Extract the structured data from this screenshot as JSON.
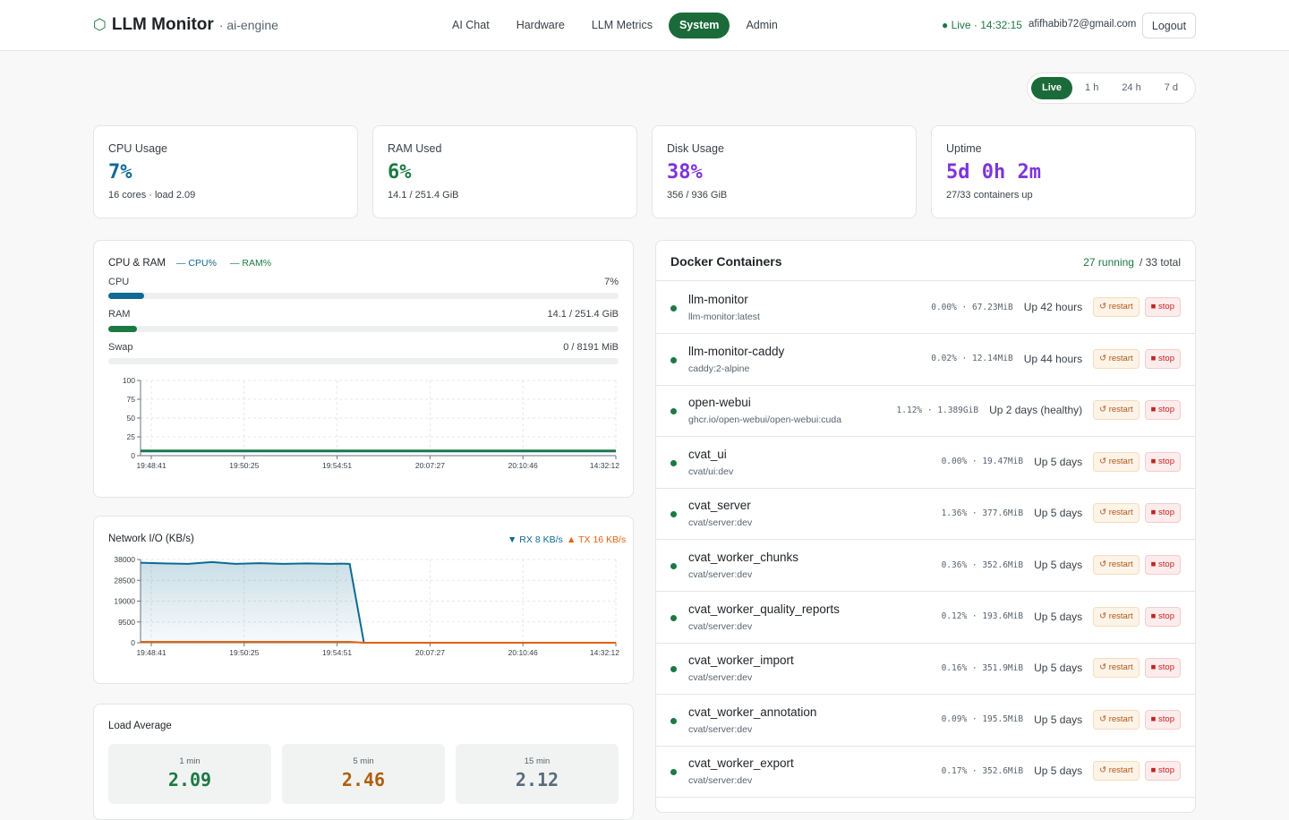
{
  "header": {
    "brand_icon": "hexagon-icon",
    "brand_symbol": "⬡",
    "title": "LLM Monitor",
    "subtitle": "· ai-engine",
    "nav": [
      {
        "label": "AI Chat",
        "active": false
      },
      {
        "label": "Hardware",
        "active": false
      },
      {
        "label": "LLM Metrics",
        "active": false
      },
      {
        "label": "System",
        "active": true
      },
      {
        "label": "Admin",
        "active": false
      }
    ],
    "status": "● Live · 14:32:15",
    "email": "afifhabib72@gmail.com",
    "logout_label": "Logout"
  },
  "range": {
    "options": [
      "Live",
      "1 h",
      "24 h",
      "7 d"
    ],
    "selected": "Live"
  },
  "colors": {
    "accent": "#1b6b3a",
    "cpu": "#0e6a94",
    "ram": "#1b7a43",
    "disk": "#7c35d9",
    "rx": "#0e6a94",
    "tx": "#e0620f",
    "load5": "#b05e0f",
    "load15": "#5a6b7c"
  },
  "stats": {
    "cpu": {
      "label": "CPU Usage",
      "value": "7%",
      "sub": "16 cores · load 2.09"
    },
    "ram": {
      "label": "RAM Used",
      "value": "6%",
      "sub": "14.1 / 251.4 GiB"
    },
    "disk": {
      "label": "Disk Usage",
      "value": "38%",
      "sub": "356 / 936 GiB"
    },
    "uptime": {
      "label": "Uptime",
      "value": "5d 0h 2m",
      "sub": "27/33 containers up"
    }
  },
  "cpu_ram": {
    "title": "CPU & RAM",
    "legend_cpu": "— CPU%",
    "legend_ram": "— RAM%",
    "bars": {
      "cpu": {
        "label": "CPU",
        "value": "7%",
        "percent": 7
      },
      "ram": {
        "label": "RAM",
        "value": "14.1 / 251.4 GiB",
        "percent": 5.6
      },
      "swap": {
        "label": "Swap",
        "value": "0 / 8191 MiB",
        "percent": 0
      }
    }
  },
  "network": {
    "title": "Network I/O (KB/s)",
    "legend_rx": "▼ RX 8 KB/s",
    "legend_tx": "▲ TX 16 KB/s"
  },
  "chart_data": [
    {
      "type": "line",
      "title": "CPU & RAM",
      "x": [
        "19:48:41",
        "19:50:25",
        "19:54:51",
        "20:07:27",
        "20:10:46",
        "14:32:12"
      ],
      "yticks": [
        0,
        25,
        50,
        75,
        100
      ],
      "ylim": [
        0,
        100
      ],
      "series": [
        {
          "name": "CPU%",
          "values": [
            6,
            6,
            6,
            6,
            6,
            6
          ]
        },
        {
          "name": "RAM%",
          "values": [
            6,
            6,
            6,
            6,
            6,
            6
          ]
        }
      ],
      "grid": true
    },
    {
      "type": "area",
      "title": "Network I/O (KB/s)",
      "x": [
        "19:48:41",
        "19:50:25",
        "19:54:51",
        "20:07:27",
        "20:10:46",
        "14:32:12"
      ],
      "yticks": [
        0,
        9500,
        19000,
        28500,
        38000
      ],
      "ylim": [
        0,
        38000
      ],
      "series": [
        {
          "name": "RX",
          "points": [
            [
              0,
              36500
            ],
            [
              0.05,
              36200
            ],
            [
              0.1,
              36000
            ],
            [
              0.15,
              36800
            ],
            [
              0.2,
              36000
            ],
            [
              0.25,
              36300
            ],
            [
              0.3,
              36000
            ],
            [
              0.35,
              36200
            ],
            [
              0.4,
              36000
            ],
            [
              0.42,
              36100
            ],
            [
              0.44,
              36000
            ],
            [
              0.47,
              0
            ],
            [
              1,
              0
            ]
          ]
        },
        {
          "name": "TX",
          "points": [
            [
              0,
              400
            ],
            [
              0.2,
              400
            ],
            [
              0.44,
              400
            ],
            [
              0.47,
              0
            ],
            [
              1,
              0
            ]
          ]
        }
      ],
      "grid": true
    }
  ],
  "load": {
    "title": "Load Average",
    "items": [
      {
        "label": "1 min",
        "value": "2.09"
      },
      {
        "label": "5 min",
        "value": "2.46"
      },
      {
        "label": "15 min",
        "value": "2.12"
      }
    ]
  },
  "docker": {
    "title": "Docker Containers",
    "running": "27 running",
    "total": "/ 33 total",
    "restart_label": "↺ restart",
    "stop_label": "■ stop",
    "containers": [
      {
        "name": "llm-monitor",
        "image": "llm-monitor:latest",
        "stats": "0.00% · 67.23MiB",
        "status": "Up 42 hours"
      },
      {
        "name": "llm-monitor-caddy",
        "image": "caddy:2-alpine",
        "stats": "0.02% · 12.14MiB",
        "status": "Up 44 hours"
      },
      {
        "name": "open-webui",
        "image": "ghcr.io/open-webui/open-webui:cuda",
        "stats": "1.12% · 1.389GiB",
        "status": "Up 2 days (healthy)"
      },
      {
        "name": "cvat_ui",
        "image": "cvat/ui:dev",
        "stats": "0.00% · 19.47MiB",
        "status": "Up 5 days"
      },
      {
        "name": "cvat_server",
        "image": "cvat/server:dev",
        "stats": "1.36% · 377.6MiB",
        "status": "Up 5 days"
      },
      {
        "name": "cvat_worker_chunks",
        "image": "cvat/server:dev",
        "stats": "0.36% · 352.6MiB",
        "status": "Up 5 days"
      },
      {
        "name": "cvat_worker_quality_reports",
        "image": "cvat/server:dev",
        "stats": "0.12% · 193.6MiB",
        "status": "Up 5 days"
      },
      {
        "name": "cvat_worker_import",
        "image": "cvat/server:dev",
        "stats": "0.16% · 351.9MiB",
        "status": "Up 5 days"
      },
      {
        "name": "cvat_worker_annotation",
        "image": "cvat/server:dev",
        "stats": "0.09% · 195.5MiB",
        "status": "Up 5 days"
      },
      {
        "name": "cvat_worker_export",
        "image": "cvat/server:dev",
        "stats": "0.17% · 352.6MiB",
        "status": "Up 5 days"
      }
    ]
  }
}
